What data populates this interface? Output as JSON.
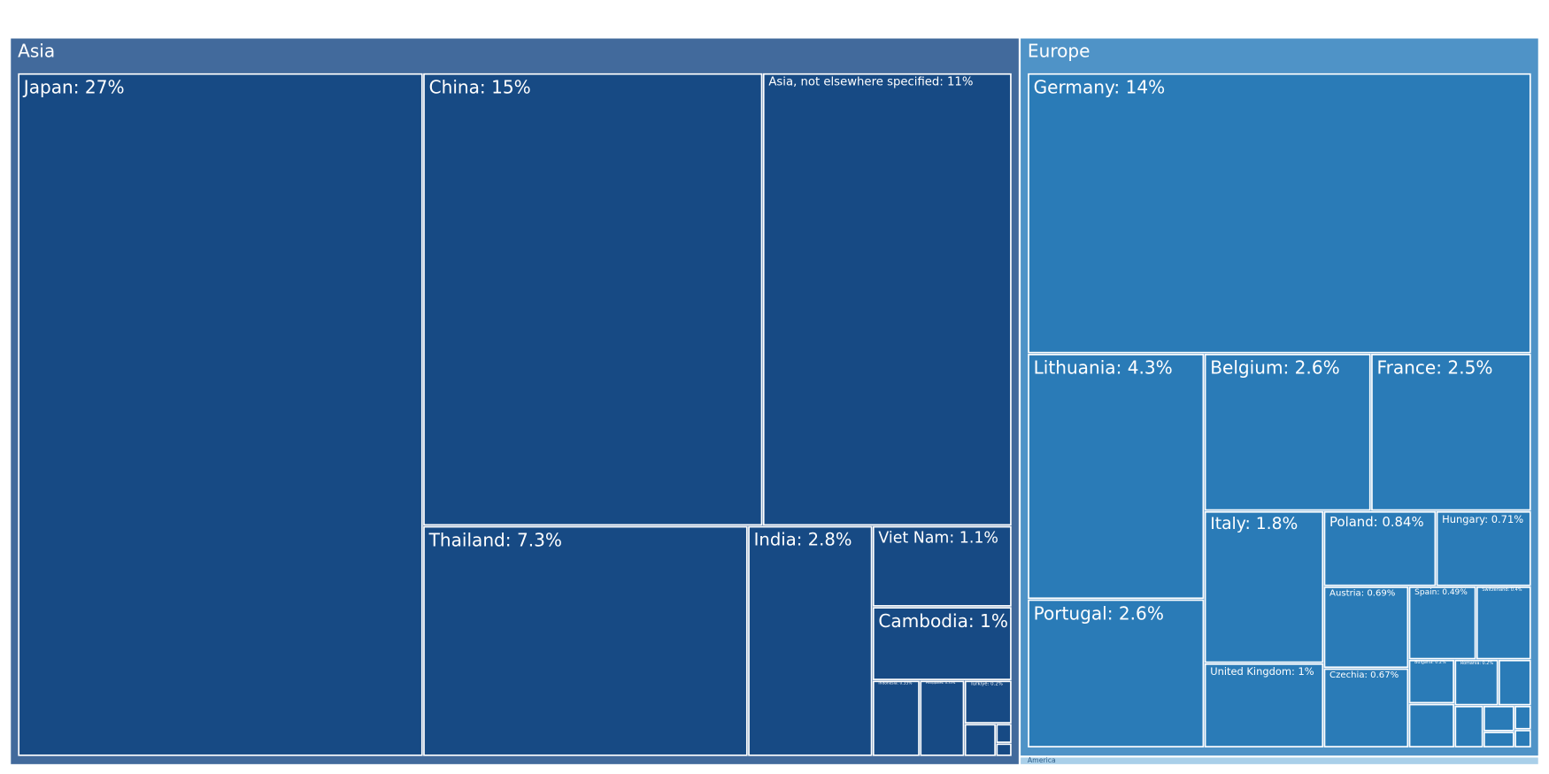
{
  "chart_data": {
    "type": "treemap",
    "groups": [
      {
        "name": "Asia",
        "color": "#426a9c",
        "leaf_color": "#174a84",
        "values": [
          27,
          15,
          11,
          7.3,
          2.8,
          1.1,
          1,
          0.35,
          0.33,
          0.2,
          0.1,
          0.03,
          0.02
        ],
        "value_labels": [
          "Japan: 27%",
          "China: 15%",
          "Asia, not elsewhere specified: 11%",
          "Thailand: 7.3%",
          "India: 2.8%",
          "Viet Nam: 1.1%",
          "Cambodia: 1%",
          "Indonesia: 0.35%",
          "Philippines: 0.33%",
          "Türkiye: 0.2%",
          null,
          null,
          null
        ]
      },
      {
        "name": "Europe",
        "color": "#4f93c7",
        "leaf_color": "#2a7bb7",
        "values": [
          14,
          4.3,
          2.6,
          2.6,
          2.5,
          1.8,
          1,
          0.84,
          0.71,
          0.69,
          0.67,
          0.49,
          0.4,
          0.2,
          0.2,
          0.2,
          0.15,
          0.12,
          0.08,
          0.05,
          0.04,
          0.03
        ],
        "value_labels": [
          "Germany: 14%",
          "Lithuania: 4.3%",
          "Portugal: 2.6%",
          "Belgium: 2.6%",
          "France: 2.5%",
          "Italy: 1.8%",
          "United Kingdom: 1%",
          "Poland: 0.84%",
          "Hungary: 0.71%",
          "Austria: 0.69%",
          "Czechia: 0.67%",
          "Spain: 0.49%",
          "Switzerland: 0.4%",
          "Bulgaria: 0.2%",
          null,
          "Romania: 0.2%",
          null,
          null,
          null,
          null,
          null,
          null
        ]
      },
      {
        "name": "America",
        "color": "#a9cfe9",
        "leaf_color": "#a9cfe9",
        "values": [
          0.4
        ],
        "value_labels": [
          null
        ]
      }
    ]
  }
}
